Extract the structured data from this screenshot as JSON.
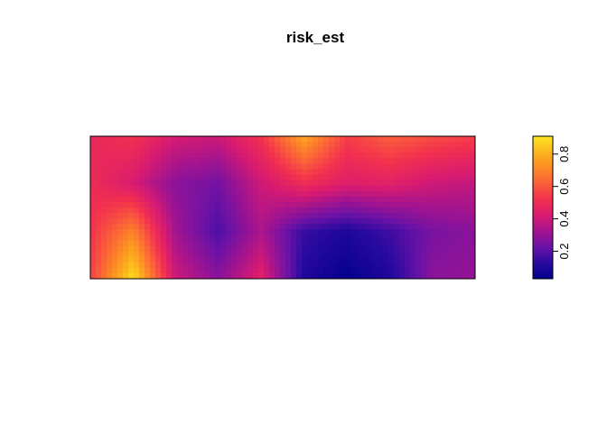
{
  "chart_data": {
    "type": "heatmap",
    "title": "risk_est",
    "xlabel": "",
    "ylabel": "",
    "axes_drawn": false,
    "legend": "right",
    "colorbar": {
      "range": [
        0.03,
        0.91
      ],
      "ticks": [
        0.2,
        0.4,
        0.6,
        0.8
      ],
      "tick_labels": [
        "0.2",
        "0.4",
        "0.6",
        "0.8"
      ],
      "palette": [
        "#00008b",
        "#2a0aa0",
        "#6a12a6",
        "#a3148f",
        "#d81b70",
        "#f2304f",
        "#fa5e3a",
        "#fd8a26",
        "#fcb51c",
        "#fde725"
      ]
    },
    "grid": {
      "nx": 10,
      "ny": 4,
      "row_order": "top-to-bottom",
      "values": [
        [
          0.48,
          0.52,
          0.42,
          0.4,
          0.52,
          0.78,
          0.55,
          0.62,
          0.58,
          0.55
        ],
        [
          0.5,
          0.42,
          0.28,
          0.24,
          0.4,
          0.5,
          0.44,
          0.45,
          0.4,
          0.38
        ],
        [
          0.52,
          0.7,
          0.32,
          0.18,
          0.34,
          0.15,
          0.1,
          0.16,
          0.25,
          0.28
        ],
        [
          0.55,
          0.9,
          0.4,
          0.28,
          0.45,
          0.1,
          0.04,
          0.1,
          0.28,
          0.3
        ]
      ]
    }
  }
}
